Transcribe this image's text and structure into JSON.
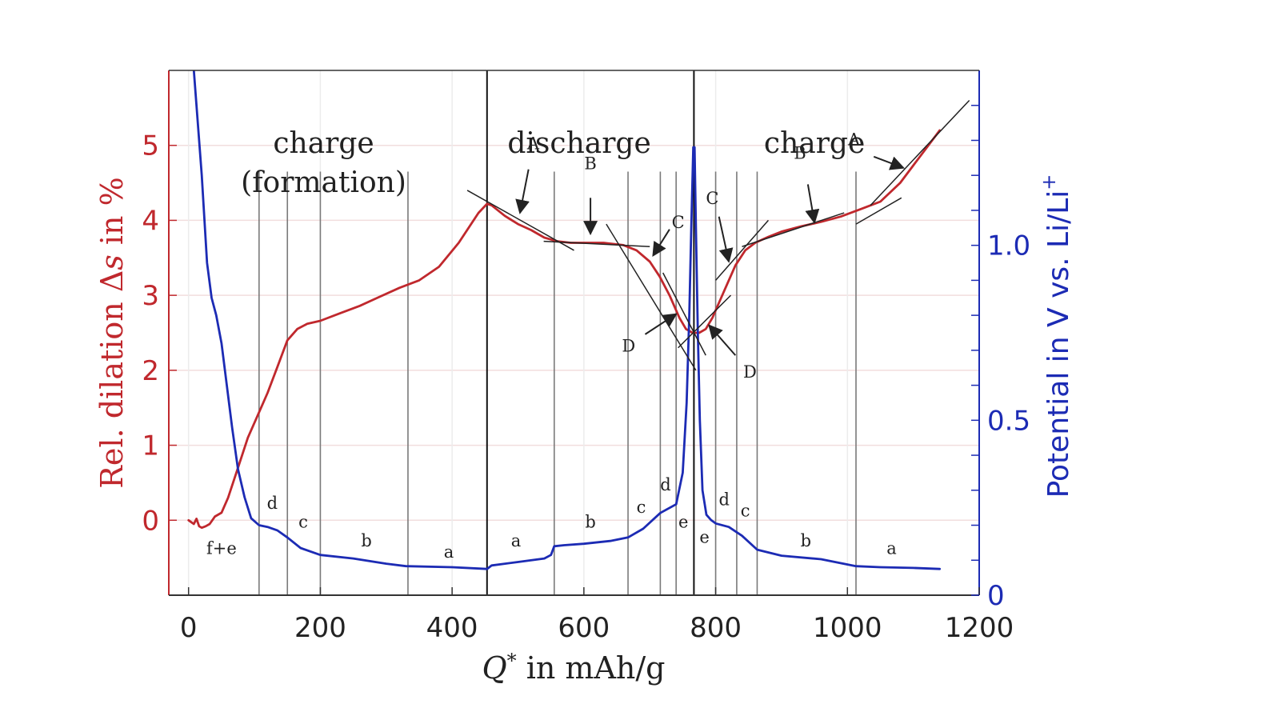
{
  "chart_data": {
    "type": "line",
    "xlabel": {
      "q": "Q",
      "star": "*",
      "rest": " in mAh/g"
    },
    "ylabel_left": {
      "pre": "Rel. dilation ",
      "delta": "Δ",
      "s": "s",
      "post": " in %"
    },
    "ylabel_right": {
      "pre": "Potential in V vs. Li/Li",
      "sup": "+"
    },
    "xlim": [
      -30,
      1200
    ],
    "ylim_left": [
      -1,
      6
    ],
    "ylim_right": [
      0,
      1.5
    ],
    "x_ticks": [
      "0",
      "200",
      "400",
      "600",
      "800",
      "1000",
      "1200"
    ],
    "x_tick_values": [
      0,
      200,
      400,
      600,
      800,
      1000,
      1200
    ],
    "y_left_ticks": [
      "0",
      "1",
      "2",
      "3",
      "4",
      "5"
    ],
    "y_left_tick_values": [
      0,
      1,
      2,
      3,
      4,
      5
    ],
    "y_right_ticks": [
      "0",
      "0.5",
      "1.0"
    ],
    "y_right_tick_values": [
      0,
      0.5,
      1.0
    ],
    "colors": {
      "dilation": "#c0282d",
      "potential": "#1c2bb4",
      "fit": "#222222",
      "grid": "#f2dede",
      "marker": "#7a7a7a"
    },
    "regions": [
      {
        "label": "charge",
        "x": 205,
        "y": 4.9
      },
      {
        "label": "(formation)",
        "x": 205,
        "y": 4.38
      },
      {
        "label": "discharge",
        "x": 593,
        "y": 4.9
      },
      {
        "label": "charge",
        "x": 950,
        "y": 4.9
      }
    ],
    "boundaries": [
      453,
      767
    ],
    "stage_markers": [
      107,
      150,
      200,
      333,
      555,
      667,
      716,
      740,
      800,
      832,
      863,
      1013
    ],
    "stage_labels": [
      {
        "text": "f+e",
        "x": 50,
        "y": -0.45
      },
      {
        "text": "d",
        "x": 127,
        "y": 0.15
      },
      {
        "text": "c",
        "x": 174,
        "y": -0.1
      },
      {
        "text": "b",
        "x": 270,
        "y": -0.35
      },
      {
        "text": "a",
        "x": 395,
        "y": -0.5
      },
      {
        "text": "a",
        "x": 497,
        "y": -0.35
      },
      {
        "text": "b",
        "x": 610,
        "y": -0.1
      },
      {
        "text": "c",
        "x": 687,
        "y": 0.1
      },
      {
        "text": "d",
        "x": 724,
        "y": 0.4
      },
      {
        "text": "e",
        "x": 751,
        "y": -0.1
      },
      {
        "text": "e",
        "x": 783,
        "y": -0.3
      },
      {
        "text": "d",
        "x": 813,
        "y": 0.2
      },
      {
        "text": "c",
        "x": 845,
        "y": 0.05
      },
      {
        "text": "b",
        "x": 937,
        "y": -0.35
      },
      {
        "text": "a",
        "x": 1067,
        "y": -0.45
      }
    ],
    "annotations": [
      {
        "text": "A",
        "x": 523,
        "y": 4.95,
        "arrow": [
          [
            516,
            4.68
          ],
          [
            503,
            4.1
          ]
        ]
      },
      {
        "text": "B",
        "x": 610,
        "y": 4.68,
        "arrow": [
          [
            610,
            4.3
          ],
          [
            610,
            3.82
          ]
        ]
      },
      {
        "text": "C",
        "x": 743,
        "y": 3.9,
        "arrow": [
          [
            730,
            3.88
          ],
          [
            705,
            3.53
          ]
        ]
      },
      {
        "text": "D",
        "x": 668,
        "y": 2.25,
        "arrow": [
          [
            693,
            2.48
          ],
          [
            740,
            2.75
          ]
        ]
      },
      {
        "text": "C",
        "x": 795,
        "y": 4.22,
        "arrow": [
          [
            805,
            4.05
          ],
          [
            820,
            3.45
          ]
        ]
      },
      {
        "text": "D",
        "x": 852,
        "y": 1.9,
        "arrow": [
          [
            830,
            2.2
          ],
          [
            790,
            2.6
          ]
        ]
      },
      {
        "text": "B",
        "x": 928,
        "y": 4.82,
        "arrow": [
          [
            940,
            4.48
          ],
          [
            950,
            3.97
          ]
        ]
      },
      {
        "text": "A",
        "x": 1010,
        "y": 5.0,
        "arrow": [
          [
            1040,
            4.85
          ],
          [
            1085,
            4.7
          ]
        ]
      }
    ],
    "fit_lines": [
      [
        [
          423,
          4.4
        ],
        [
          585,
          3.6
        ]
      ],
      [
        [
          539,
          3.72
        ],
        [
          700,
          3.65
        ]
      ],
      [
        [
          634,
          3.95
        ],
        [
          770,
          2.0
        ]
      ],
      [
        [
          720,
          3.3
        ],
        [
          785,
          2.2
        ]
      ],
      [
        [
          743,
          2.3
        ],
        [
          823,
          3.0
        ]
      ],
      [
        [
          800,
          3.2
        ],
        [
          880,
          4.0
        ]
      ],
      [
        [
          840,
          3.65
        ],
        [
          995,
          4.1
        ]
      ],
      [
        [
          1013,
          3.95
        ],
        [
          1082,
          4.3
        ]
      ],
      [
        [
          1035,
          4.2
        ],
        [
          1185,
          5.6
        ]
      ]
    ],
    "series": [
      {
        "name": "",
        "axis": "left",
        "x": [
          0,
          8,
          12,
          16,
          20,
          26,
          32,
          40,
          50,
          60,
          75,
          90,
          105,
          120,
          135,
          150,
          165,
          180,
          200,
          230,
          260,
          290,
          320,
          350,
          380,
          410,
          440,
          453,
          460,
          480,
          500,
          520,
          540,
          560,
          580,
          600,
          630,
          660,
          680,
          700,
          715,
          730,
          745,
          755,
          765,
          775,
          785,
          795,
          805,
          815,
          830,
          845,
          860,
          880,
          900,
          930,
          960,
          990,
          1020,
          1050,
          1080,
          1110,
          1140
        ],
        "y": [
          0.0,
          -0.05,
          0.02,
          -0.08,
          -0.1,
          -0.08,
          -0.05,
          0.05,
          0.1,
          0.3,
          0.7,
          1.1,
          1.4,
          1.7,
          2.05,
          2.4,
          2.55,
          2.62,
          2.66,
          2.76,
          2.86,
          2.98,
          3.1,
          3.2,
          3.38,
          3.7,
          4.1,
          4.22,
          4.2,
          4.06,
          3.95,
          3.87,
          3.77,
          3.72,
          3.7,
          3.7,
          3.7,
          3.67,
          3.6,
          3.45,
          3.25,
          3.0,
          2.7,
          2.55,
          2.5,
          2.5,
          2.55,
          2.7,
          2.9,
          3.1,
          3.4,
          3.6,
          3.7,
          3.78,
          3.85,
          3.92,
          3.98,
          4.05,
          4.15,
          4.25,
          4.5,
          4.85,
          5.2
        ]
      },
      {
        "name": "",
        "axis": "right",
        "x": [
          8,
          12,
          20,
          28,
          35,
          42,
          50,
          58,
          66,
          75,
          85,
          95,
          107,
          120,
          135,
          150,
          170,
          200,
          250,
          300,
          330,
          400,
          453,
          460,
          500,
          540,
          550,
          555,
          570,
          600,
          640,
          667,
          690,
          716,
          740,
          750,
          756,
          760,
          763,
          766,
          768,
          770,
          773,
          776,
          780,
          786,
          793,
          800,
          820,
          840,
          863,
          900,
          960,
          1013,
          1050,
          1100,
          1140
        ],
        "y": [
          1.5,
          1.4,
          1.2,
          0.95,
          0.85,
          0.8,
          0.72,
          0.6,
          0.48,
          0.36,
          0.28,
          0.22,
          0.2,
          0.195,
          0.185,
          0.165,
          0.135,
          0.115,
          0.105,
          0.09,
          0.083,
          0.08,
          0.075,
          0.085,
          0.095,
          0.105,
          0.115,
          0.14,
          0.143,
          0.147,
          0.155,
          0.165,
          0.19,
          0.235,
          0.26,
          0.35,
          0.55,
          0.8,
          1.05,
          1.28,
          1.28,
          1.05,
          0.75,
          0.5,
          0.3,
          0.23,
          0.215,
          0.205,
          0.195,
          0.17,
          0.13,
          0.113,
          0.103,
          0.083,
          0.08,
          0.078,
          0.075
        ]
      }
    ]
  }
}
